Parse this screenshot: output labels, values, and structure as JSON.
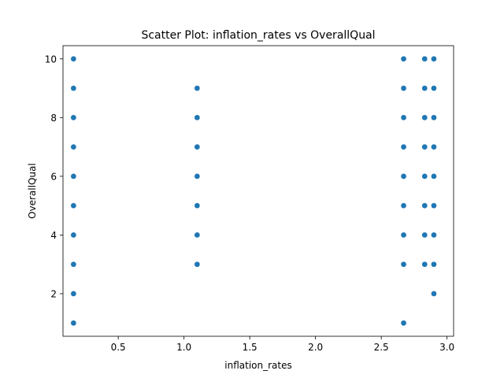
{
  "chart_data": {
    "type": "scatter",
    "title": "Scatter Plot: inflation_rates vs OverallQual",
    "xlabel": "inflation_rates",
    "ylabel": "OverallQual",
    "xlim": [
      0.08,
      3.05
    ],
    "ylim": [
      0.55,
      10.45
    ],
    "xticks": [
      0.5,
      1.0,
      1.5,
      2.0,
      2.5,
      3.0
    ],
    "xtick_labels": [
      "0.5",
      "1.0",
      "1.5",
      "2.0",
      "2.5",
      "3.0"
    ],
    "yticks": [
      2,
      4,
      6,
      8,
      10
    ],
    "ytick_labels": [
      "2",
      "4",
      "6",
      "8",
      "10"
    ],
    "grid": false,
    "marker_color": "#1f77b4",
    "points": [
      {
        "x": 0.16,
        "y": 10
      },
      {
        "x": 0.16,
        "y": 9
      },
      {
        "x": 0.16,
        "y": 8
      },
      {
        "x": 0.16,
        "y": 7
      },
      {
        "x": 0.16,
        "y": 6
      },
      {
        "x": 0.16,
        "y": 5
      },
      {
        "x": 0.16,
        "y": 4
      },
      {
        "x": 0.16,
        "y": 3
      },
      {
        "x": 0.16,
        "y": 2
      },
      {
        "x": 0.16,
        "y": 1
      },
      {
        "x": 1.1,
        "y": 9
      },
      {
        "x": 1.1,
        "y": 8
      },
      {
        "x": 1.1,
        "y": 7
      },
      {
        "x": 1.1,
        "y": 6
      },
      {
        "x": 1.1,
        "y": 5
      },
      {
        "x": 1.1,
        "y": 4
      },
      {
        "x": 1.1,
        "y": 3
      },
      {
        "x": 2.67,
        "y": 10
      },
      {
        "x": 2.67,
        "y": 9
      },
      {
        "x": 2.67,
        "y": 8
      },
      {
        "x": 2.67,
        "y": 7
      },
      {
        "x": 2.67,
        "y": 6
      },
      {
        "x": 2.67,
        "y": 5
      },
      {
        "x": 2.67,
        "y": 4
      },
      {
        "x": 2.67,
        "y": 3
      },
      {
        "x": 2.67,
        "y": 1
      },
      {
        "x": 2.83,
        "y": 10
      },
      {
        "x": 2.83,
        "y": 9
      },
      {
        "x": 2.83,
        "y": 8
      },
      {
        "x": 2.83,
        "y": 7
      },
      {
        "x": 2.83,
        "y": 6
      },
      {
        "x": 2.83,
        "y": 5
      },
      {
        "x": 2.83,
        "y": 4
      },
      {
        "x": 2.83,
        "y": 3
      },
      {
        "x": 2.9,
        "y": 10
      },
      {
        "x": 2.9,
        "y": 9
      },
      {
        "x": 2.9,
        "y": 8
      },
      {
        "x": 2.9,
        "y": 7
      },
      {
        "x": 2.9,
        "y": 6
      },
      {
        "x": 2.9,
        "y": 5
      },
      {
        "x": 2.9,
        "y": 4
      },
      {
        "x": 2.9,
        "y": 3
      },
      {
        "x": 2.9,
        "y": 2
      }
    ]
  }
}
